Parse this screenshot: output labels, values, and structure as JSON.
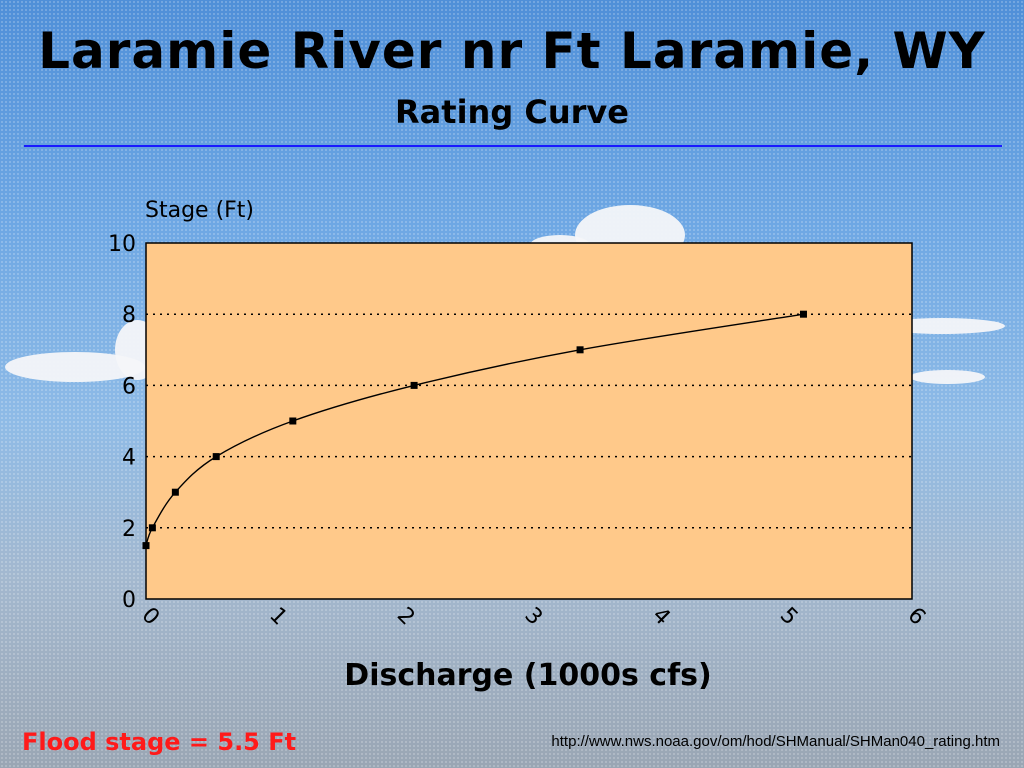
{
  "title": "Laramie River nr Ft Laramie, WY",
  "subtitle": "Rating Curve",
  "footer": {
    "flood_stage": "Flood stage = 5.5 Ft",
    "source_url": "http://www.nws.noaa.gov/om/hod/SHManual/SHMan040_rating.htm"
  },
  "colors": {
    "plot_background": "#ffc98a",
    "title_rule": "#1a1aff",
    "flood_text": "#ff1a1a"
  },
  "chart_data": {
    "type": "line",
    "title": "Laramie River nr Ft Laramie, WY",
    "subtitle": "Rating Curve",
    "xlabel": "Discharge (1000s cfs)",
    "ylabel": "Stage (Ft)",
    "xlim": [
      0,
      6
    ],
    "ylim": [
      0,
      10
    ],
    "x_ticks": [
      0,
      1,
      2,
      3,
      4,
      5,
      6
    ],
    "y_ticks": [
      0,
      2,
      4,
      6,
      8,
      10
    ],
    "grid": "horizontal dotted",
    "series": [
      {
        "x": [
          0,
          0.05,
          0.23,
          0.55,
          1.15,
          2.1,
          3.4,
          5.15
        ],
        "y": [
          1.5,
          2,
          3,
          4,
          5,
          6,
          7,
          8
        ]
      }
    ]
  }
}
